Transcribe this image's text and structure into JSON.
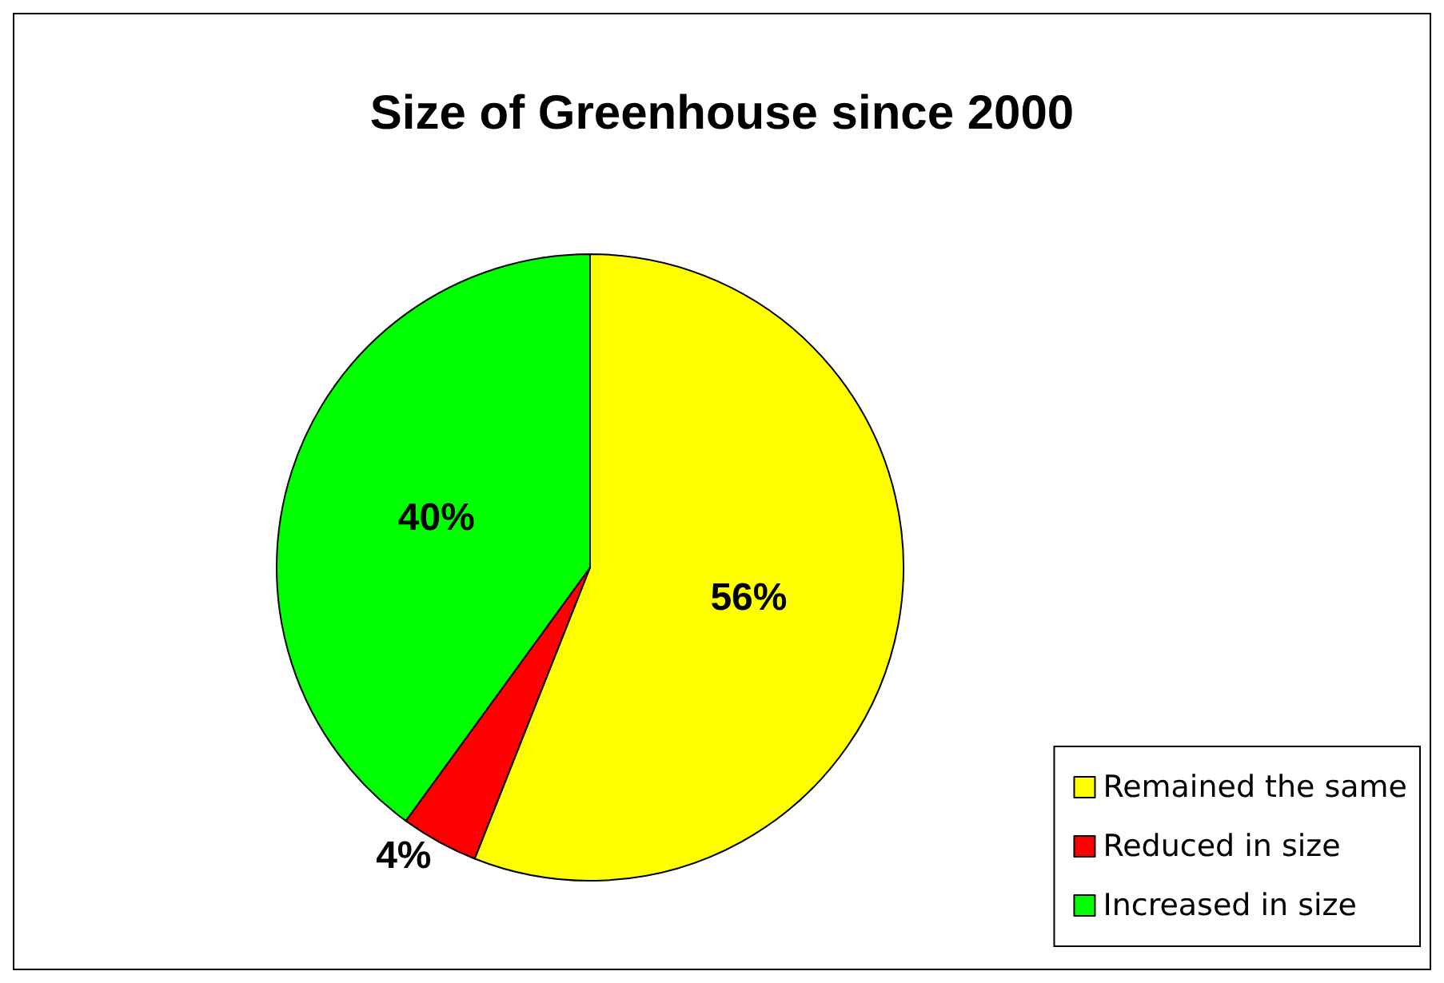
{
  "chart_data": {
    "type": "pie",
    "title": "Size of Greenhouse since 2000",
    "categories": [
      "Remained the same",
      "Reduced in size",
      "Increased in size"
    ],
    "values": [
      56,
      4,
      40
    ],
    "value_labels": [
      "56%",
      "4%",
      "40%"
    ],
    "colors": [
      "#ffff00",
      "#ff0000",
      "#00ff00"
    ],
    "legend": "bottom right"
  }
}
